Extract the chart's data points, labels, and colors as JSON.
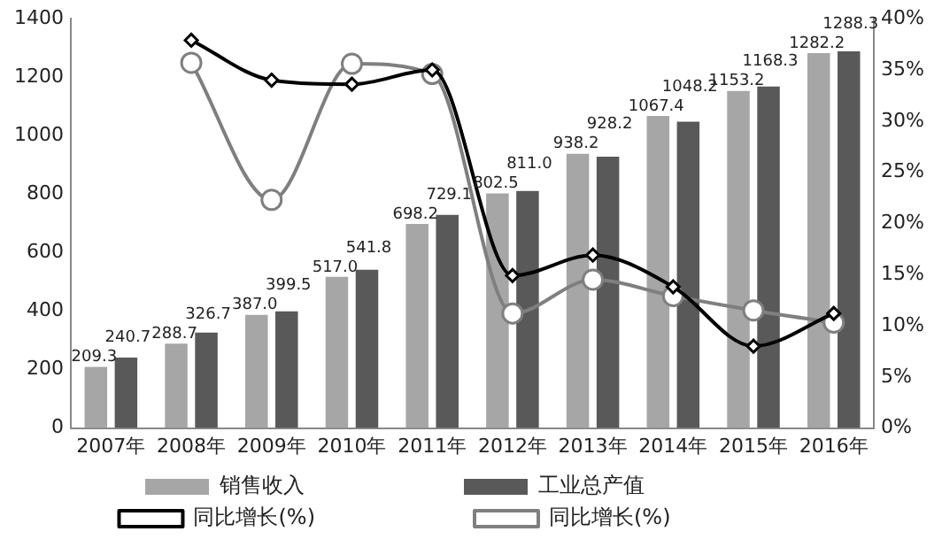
{
  "chart_data": {
    "type": "bar",
    "categories": [
      "2007年",
      "2008年",
      "2009年",
      "2010年",
      "2011年",
      "2012年",
      "2013年",
      "2014年",
      "2015年",
      "2016年"
    ],
    "series": [
      {
        "name": "销售收入",
        "color": "#a6a6a6",
        "values": [
          209.3,
          288.7,
          387.0,
          517.0,
          698.2,
          802.5,
          938.2,
          1067.4,
          1153.2,
          1282.2
        ],
        "value_labels": [
          "209.3",
          "288.7",
          "387.0",
          "517.0",
          "698.2",
          "802.5",
          "938.2",
          "1067.4",
          "1153.2",
          "1282.2"
        ]
      },
      {
        "name": "工业总产值",
        "color": "#595959",
        "values": [
          240.7,
          326.7,
          399.5,
          541.8,
          729.1,
          811.0,
          928.2,
          1048.2,
          1168.3,
          1288.3
        ],
        "value_labels": [
          "240.7",
          "326.7",
          "399.5",
          "541.8",
          "729.1",
          "811.0",
          "928.2",
          "1048.2",
          "1168.3",
          "1288.3"
        ]
      },
      {
        "name": "同比增长(%)",
        "type": "line",
        "axis": "y2",
        "marker": "diamond",
        "color": "#000000",
        "values": [
          null,
          37.9,
          34.0,
          33.6,
          35.0,
          14.9,
          16.9,
          13.8,
          8.0,
          11.2
        ]
      },
      {
        "name": "同比增长(%)",
        "type": "line",
        "axis": "y2",
        "marker": "circle",
        "color": "#7f7f7f",
        "values": [
          null,
          35.7,
          22.3,
          35.6,
          34.6,
          11.2,
          14.5,
          12.9,
          11.5,
          10.3
        ]
      }
    ],
    "ylim": [
      0,
      1400
    ],
    "yticks": [
      0,
      200,
      400,
      600,
      800,
      1000,
      1200,
      1400
    ],
    "y2lim": [
      0,
      40
    ],
    "y2ticks": [
      {
        "value": 0,
        "label": "0%"
      },
      {
        "value": 5,
        "label": "5%"
      },
      {
        "value": 10,
        "label": "10%"
      },
      {
        "value": 15,
        "label": "15%"
      },
      {
        "value": 20,
        "label": "20%"
      },
      {
        "value": 25,
        "label": "25%"
      },
      {
        "value": 30,
        "label": "30%"
      },
      {
        "value": 35,
        "label": "35%"
      },
      {
        "value": 40,
        "label": "40%"
      }
    ],
    "grid": false,
    "legend": "bottom",
    "line_style": "solid"
  }
}
